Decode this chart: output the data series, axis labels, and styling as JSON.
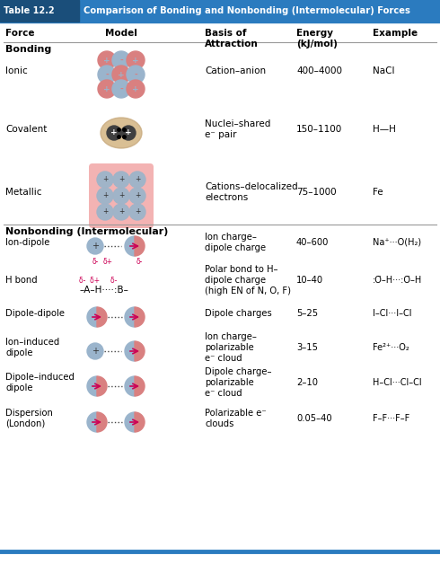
{
  "title": "Table 12.2",
  "title_text": "Comparison of Bonding and Nonbonding (Intermolecular) Forces",
  "header_bg": "#2b7bbf",
  "header_dark": "#1a4e7a",
  "bg_color": "#ffffff",
  "teal_line": "#2b7bbf",
  "gray_line": "#999999",
  "bonding_rows": [
    {
      "force": "Ionic",
      "basis": "Cation–anion",
      "energy": "400–4000",
      "example": "NaCl"
    },
    {
      "force": "Covalent",
      "basis": "Nuclei–shared\ne⁻ pair",
      "energy": "150–1100",
      "example": "H—H"
    },
    {
      "force": "Metallic",
      "basis": "Cations–delocalized\nelectrons",
      "energy": "75–1000",
      "example": "Fe"
    }
  ],
  "nb_rows": [
    {
      "force": "Ion-dipole",
      "basis": "Ion charge–\ndipole charge",
      "energy": "40–600",
      "example": "Na⁺···O(H₂)"
    },
    {
      "force": "H bond",
      "basis": "Polar bond to H–\ndipole charge\n(high EN of N, O, F)",
      "energy": "10–40",
      "example": ":Ö–H···:Ö–H"
    },
    {
      "force": "Dipole-dipole",
      "basis": "Dipole charges",
      "energy": "5–25",
      "example": "I–Cl···I–Cl"
    },
    {
      "force": "Ion–induced\ndipole",
      "basis": "Ion charge–\npolarizable\ne⁻ cloud",
      "energy": "3–15",
      "example": "Fe²⁺···O₂"
    },
    {
      "force": "Dipole–induced\ndipole",
      "basis": "Dipole charge–\npolarizable\ne⁻ cloud",
      "energy": "2–10",
      "example": "H–Cl···Cl–Cl"
    },
    {
      "force": "Dispersion\n(London)",
      "basis": "Polarizable e⁻\nclouds",
      "energy": "0.05–40",
      "example": "F–F···F–F"
    }
  ]
}
